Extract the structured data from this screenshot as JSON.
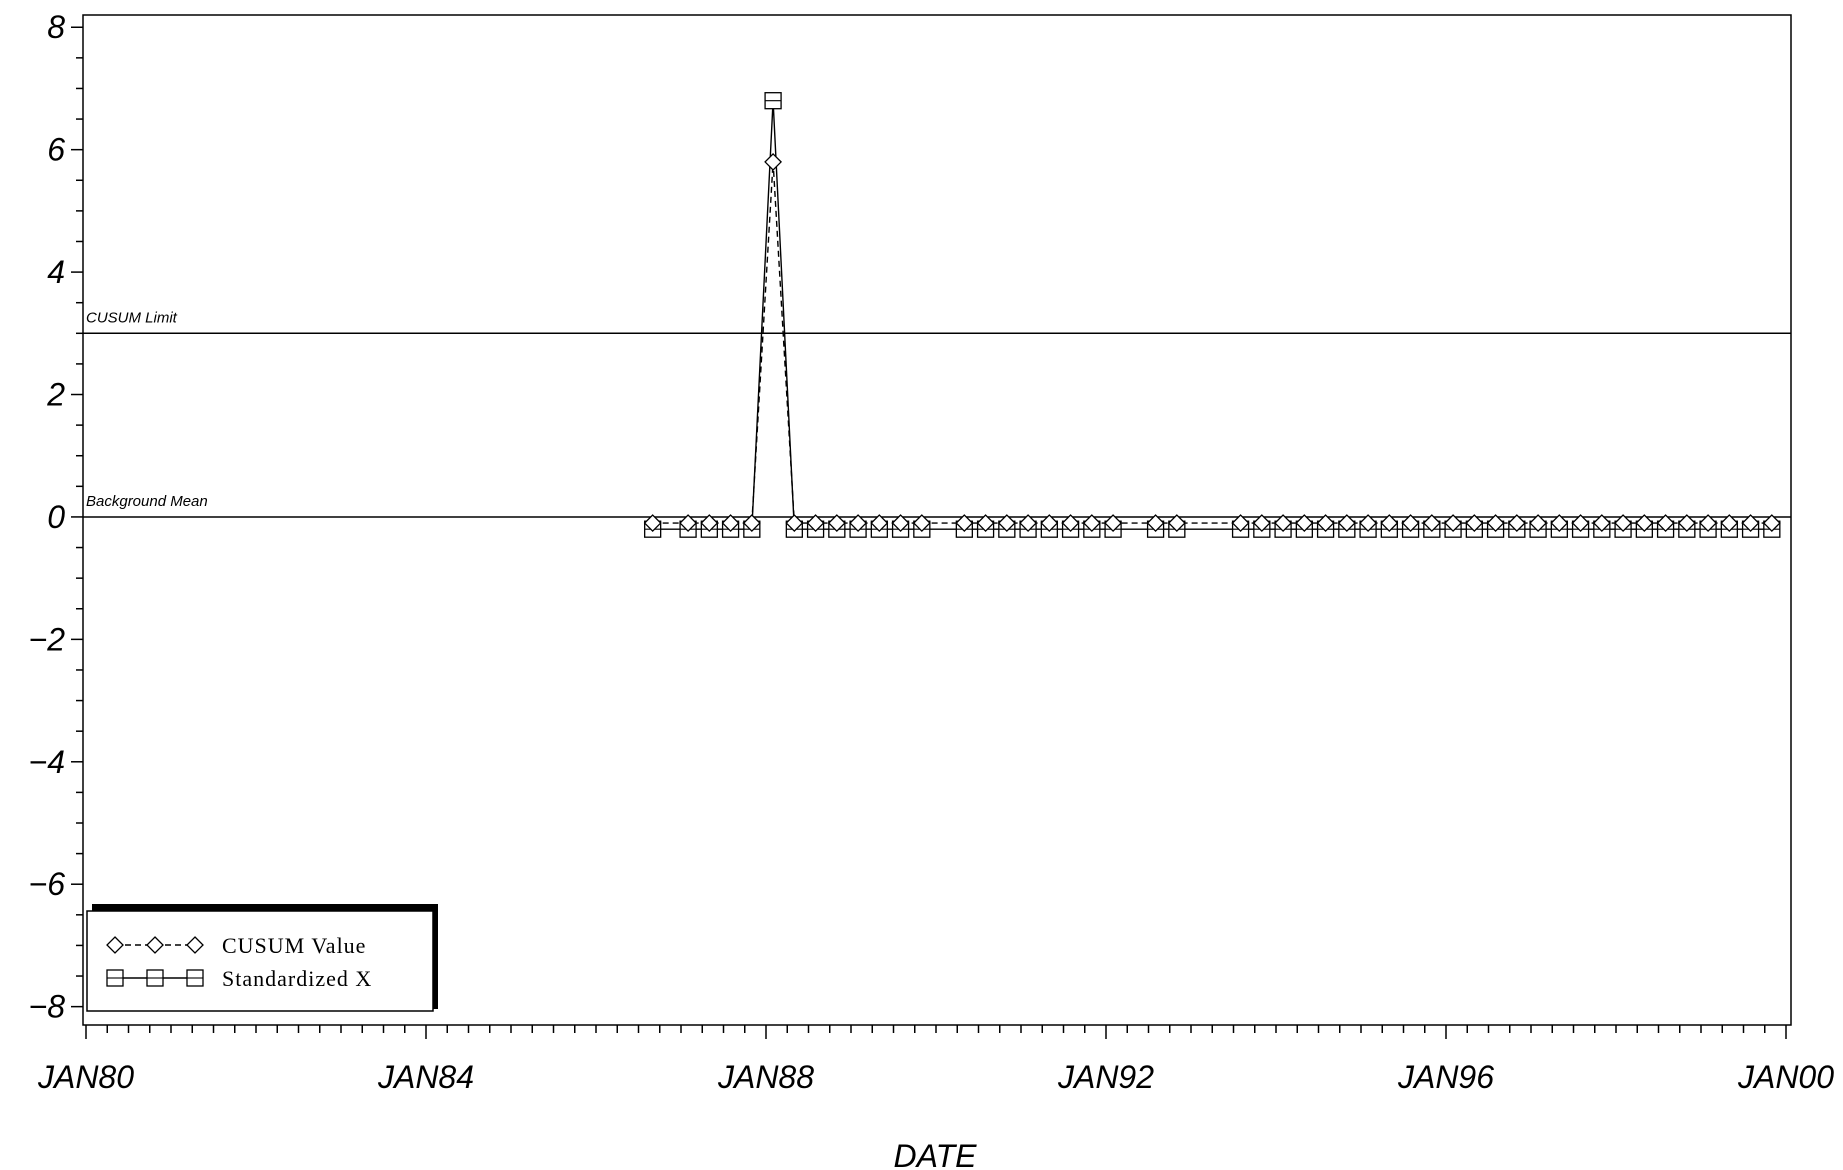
{
  "chart_data": {
    "type": "line",
    "xlabel": "DATE",
    "ylabel": "",
    "xlim": [
      "1980-01",
      "2000-01"
    ],
    "ylim": [
      -8.3,
      8.2
    ],
    "x_ticks": [
      "JAN80",
      "JAN84",
      "JAN88",
      "JAN92",
      "JAN96",
      "JAN00"
    ],
    "y_ticks": [
      "8",
      "6",
      "4",
      "2",
      "0",
      "−2",
      "−4",
      "−6",
      "−8"
    ],
    "grid": false,
    "legend_position": "bottom-left",
    "reference_lines": [
      {
        "label": "CUSUM Limit",
        "value": 3
      },
      {
        "label": "Background Mean",
        "value": 0
      }
    ],
    "x": [
      "1986-09",
      "1987-02",
      "1987-05",
      "1987-08",
      "1987-11",
      "1988-02",
      "1988-05",
      "1988-08",
      "1988-11",
      "1989-02",
      "1989-05",
      "1989-08",
      "1989-11",
      "1990-05",
      "1990-08",
      "1990-11",
      "1991-02",
      "1991-05",
      "1991-08",
      "1991-11",
      "1992-02",
      "1992-08",
      "1992-11",
      "1993-08",
      "1993-11",
      "1994-02",
      "1994-05",
      "1994-08",
      "1994-11",
      "1995-02",
      "1995-05",
      "1995-08",
      "1995-11",
      "1996-02",
      "1996-05",
      "1996-08",
      "1996-11",
      "1997-02",
      "1997-05",
      "1997-08",
      "1997-11",
      "1998-02",
      "1998-05",
      "1998-08",
      "1998-11",
      "1999-02",
      "1999-05",
      "1999-08",
      "1999-11"
    ],
    "series": [
      {
        "name": "CUSUM Value",
        "marker": "diamond",
        "line_style": "dashed",
        "values": [
          -0.1,
          -0.1,
          -0.1,
          -0.1,
          -0.1,
          5.8,
          -0.1,
          -0.1,
          -0.1,
          -0.1,
          -0.1,
          -0.1,
          -0.1,
          -0.1,
          -0.1,
          -0.1,
          -0.1,
          -0.1,
          -0.1,
          -0.1,
          -0.1,
          -0.1,
          -0.1,
          -0.1,
          -0.1,
          -0.1,
          -0.1,
          -0.1,
          -0.1,
          -0.1,
          -0.1,
          -0.1,
          -0.1,
          -0.1,
          -0.1,
          -0.1,
          -0.1,
          -0.1,
          -0.1,
          -0.1,
          -0.1,
          -0.1,
          -0.1,
          -0.1,
          -0.1,
          -0.1,
          -0.1,
          -0.1,
          -0.1
        ]
      },
      {
        "name": "Standardized X",
        "marker": "square",
        "line_style": "solid",
        "values": [
          -0.2,
          -0.2,
          -0.2,
          -0.2,
          -0.2,
          6.8,
          -0.2,
          -0.2,
          -0.2,
          -0.2,
          -0.2,
          -0.2,
          -0.2,
          -0.2,
          -0.2,
          -0.2,
          -0.2,
          -0.2,
          -0.2,
          -0.2,
          -0.2,
          -0.2,
          -0.2,
          -0.2,
          -0.2,
          -0.2,
          -0.2,
          -0.2,
          -0.2,
          -0.2,
          -0.2,
          -0.2,
          -0.2,
          -0.2,
          -0.2,
          -0.2,
          -0.2,
          -0.2,
          -0.2,
          -0.2,
          -0.2,
          -0.2,
          -0.2,
          -0.2,
          -0.2,
          -0.2,
          -0.2,
          -0.2,
          -0.2
        ]
      }
    ]
  },
  "colors": {
    "ink": "#000000",
    "background": "#ffffff"
  }
}
